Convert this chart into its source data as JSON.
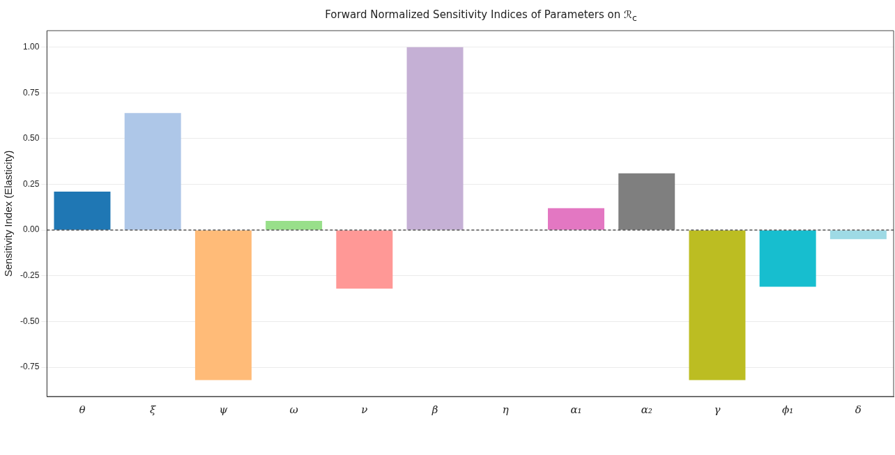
{
  "chart_data": {
    "type": "bar",
    "title": "Forward Normalized Sensitivity Indices of Parameters on ℛ$_{c}$",
    "ylabel": "Sensitivity Index (Elasticity)",
    "categories": [
      "θ",
      "ξ",
      "ψ",
      "ω",
      "ν",
      "β",
      "η",
      "α₁",
      "α₂",
      "γ",
      "ϕ₁",
      "δ"
    ],
    "values": [
      0.21,
      0.64,
      -0.82,
      0.05,
      -0.32,
      1.0,
      0.0,
      0.12,
      0.31,
      -0.82,
      -0.31,
      -0.05
    ],
    "colors": [
      "#1f77b4",
      "#aec7e8",
      "#ffbb78",
      "#98df8a",
      "#ff9896",
      "#c5b0d5",
      "#c49c94",
      "#e377c2",
      "#7f7f7f",
      "#bcbd22",
      "#17becf",
      "#9edae5"
    ],
    "ylim": [
      -0.91,
      1.09
    ],
    "yticks": [
      {
        "value": -0.75,
        "label": "-0.75"
      },
      {
        "value": -0.5,
        "label": "-0.50"
      },
      {
        "value": -0.25,
        "label": "-0.25"
      },
      {
        "value": 0,
        "label": "0.00"
      },
      {
        "value": 0.25,
        "label": "0.25"
      },
      {
        "value": 0.5,
        "label": "0.50"
      },
      {
        "value": 0.75,
        "label": "0.75"
      },
      {
        "value": 1.0,
        "label": "1.00"
      }
    ],
    "grid": "y",
    "legend": false,
    "ref_lines": [
      {
        "axis": "y",
        "value": 0,
        "color": "#333333",
        "line_style": "dashed"
      }
    ]
  }
}
